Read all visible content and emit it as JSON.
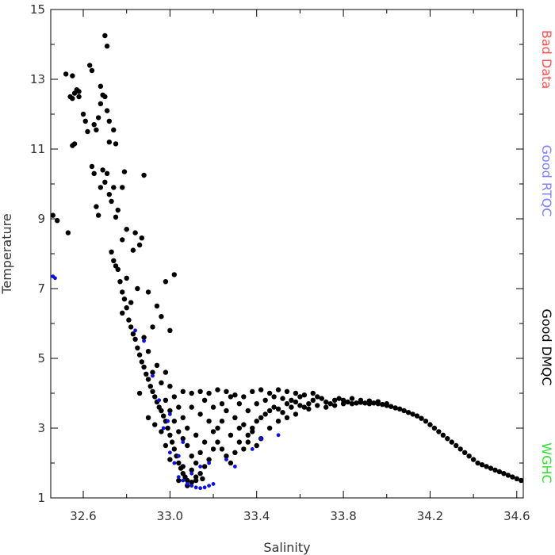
{
  "chart_data": {
    "type": "scatter",
    "xlabel": "Salinity",
    "ylabel": "Temperature",
    "xlim": [
      32.45,
      34.63
    ],
    "ylim": [
      1,
      15
    ],
    "x_ticks": [
      "32.6",
      "33.0",
      "33.4",
      "33.8",
      "34.2",
      "34.6"
    ],
    "y_ticks": [
      "1",
      "3",
      "5",
      "7",
      "9",
      "11",
      "13",
      "15"
    ],
    "grid": false,
    "legend_position": "right-vertical",
    "legend": [
      {
        "label": "Bad Data",
        "color": "#ff4d4d"
      },
      {
        "label": "Good RTQC",
        "color": "#8080ff"
      },
      {
        "label": "Good DMQC",
        "color": "#000000"
      },
      {
        "label": "WGHC",
        "color": "#33dd33"
      }
    ],
    "series": [
      {
        "name": "Good DMQC",
        "color": "#000000",
        "points": [
          [
            32.46,
            9.1
          ],
          [
            32.48,
            8.95
          ],
          [
            32.53,
            8.6
          ],
          [
            32.52,
            13.15
          ],
          [
            32.55,
            13.1
          ],
          [
            32.54,
            12.5
          ],
          [
            32.55,
            12.45
          ],
          [
            32.56,
            12.6
          ],
          [
            32.57,
            12.7
          ],
          [
            32.58,
            12.65
          ],
          [
            32.55,
            11.1
          ],
          [
            32.56,
            11.15
          ],
          [
            32.58,
            12.5
          ],
          [
            32.6,
            12.0
          ],
          [
            32.62,
            11.5
          ],
          [
            32.61,
            11.8
          ],
          [
            32.63,
            13.4
          ],
          [
            32.64,
            13.25
          ],
          [
            32.65,
            11.7
          ],
          [
            32.66,
            11.55
          ],
          [
            32.67,
            11.9
          ],
          [
            32.68,
            12.8
          ],
          [
            32.69,
            12.55
          ],
          [
            32.68,
            12.3
          ],
          [
            32.7,
            12.5
          ],
          [
            32.7,
            14.25
          ],
          [
            32.71,
            13.95
          ],
          [
            32.71,
            12.1
          ],
          [
            32.72,
            11.8
          ],
          [
            32.72,
            11.2
          ],
          [
            32.74,
            11.55
          ],
          [
            32.75,
            11.15
          ],
          [
            32.64,
            10.5
          ],
          [
            32.65,
            10.3
          ],
          [
            32.66,
            9.35
          ],
          [
            32.67,
            9.1
          ],
          [
            32.68,
            9.9
          ],
          [
            32.69,
            10.4
          ],
          [
            32.7,
            10.05
          ],
          [
            32.71,
            10.3
          ],
          [
            32.72,
            9.7
          ],
          [
            32.73,
            9.5
          ],
          [
            32.74,
            9.9
          ],
          [
            32.75,
            9.05
          ],
          [
            32.76,
            9.25
          ],
          [
            32.79,
            10.35
          ],
          [
            32.78,
            9.9
          ],
          [
            32.88,
            10.25
          ],
          [
            32.78,
            8.4
          ],
          [
            32.8,
            8.7
          ],
          [
            32.83,
            8.1
          ],
          [
            32.84,
            8.6
          ],
          [
            32.86,
            8.25
          ],
          [
            32.87,
            8.45
          ],
          [
            32.73,
            8.05
          ],
          [
            32.74,
            7.8
          ],
          [
            32.75,
            7.65
          ],
          [
            32.76,
            7.55
          ],
          [
            32.77,
            7.2
          ],
          [
            32.78,
            6.9
          ],
          [
            32.79,
            6.7
          ],
          [
            32.8,
            6.45
          ],
          [
            32.81,
            6.1
          ],
          [
            32.82,
            5.9
          ],
          [
            32.83,
            5.7
          ],
          [
            32.84,
            5.55
          ],
          [
            32.85,
            5.3
          ],
          [
            32.86,
            5.1
          ],
          [
            32.87,
            4.9
          ],
          [
            32.88,
            4.75
          ],
          [
            32.89,
            4.55
          ],
          [
            32.9,
            4.4
          ],
          [
            32.91,
            4.2
          ],
          [
            32.92,
            4.05
          ],
          [
            32.93,
            3.9
          ],
          [
            32.94,
            3.75
          ],
          [
            32.95,
            3.6
          ],
          [
            32.96,
            3.5
          ],
          [
            32.97,
            3.35
          ],
          [
            32.98,
            3.2
          ],
          [
            32.99,
            3.0
          ],
          [
            33.0,
            2.8
          ],
          [
            33.01,
            2.6
          ],
          [
            33.02,
            2.4
          ],
          [
            33.03,
            2.2
          ],
          [
            33.04,
            2.0
          ],
          [
            33.05,
            1.85
          ],
          [
            33.06,
            1.7
          ],
          [
            33.07,
            1.6
          ],
          [
            33.08,
            1.5
          ],
          [
            33.1,
            1.45
          ],
          [
            33.12,
            1.5
          ],
          [
            33.15,
            1.55
          ],
          [
            32.8,
            7.3
          ],
          [
            32.85,
            7.0
          ],
          [
            32.9,
            6.9
          ],
          [
            32.94,
            6.5
          ],
          [
            32.98,
            7.2
          ],
          [
            33.02,
            7.4
          ],
          [
            32.96,
            6.2
          ],
          [
            33.0,
            5.8
          ],
          [
            32.92,
            5.9
          ],
          [
            32.88,
            5.6
          ],
          [
            32.82,
            6.6
          ],
          [
            32.78,
            6.3
          ],
          [
            32.9,
            5.2
          ],
          [
            32.94,
            4.8
          ],
          [
            32.98,
            4.6
          ],
          [
            33.0,
            4.2
          ],
          [
            33.02,
            3.9
          ],
          [
            32.96,
            4.3
          ],
          [
            32.92,
            4.6
          ],
          [
            32.86,
            4.0
          ],
          [
            32.9,
            3.3
          ],
          [
            32.93,
            3.1
          ],
          [
            32.96,
            2.9
          ],
          [
            32.98,
            2.5
          ],
          [
            33.0,
            2.1
          ],
          [
            33.04,
            1.5
          ],
          [
            33.08,
            1.35
          ],
          [
            33.06,
            1.9
          ],
          [
            33.1,
            2.2
          ],
          [
            33.12,
            2.0
          ],
          [
            33.14,
            1.7
          ],
          [
            33.16,
            1.9
          ],
          [
            33.18,
            2.1
          ],
          [
            33.2,
            2.4
          ],
          [
            33.22,
            2.6
          ],
          [
            33.24,
            2.4
          ],
          [
            33.26,
            2.2
          ],
          [
            33.28,
            2.0
          ],
          [
            33.3,
            2.3
          ],
          [
            33.32,
            2.6
          ],
          [
            33.34,
            2.4
          ],
          [
            33.36,
            2.8
          ],
          [
            33.38,
            3.0
          ],
          [
            33.4,
            3.2
          ],
          [
            33.42,
            3.3
          ],
          [
            33.44,
            3.4
          ],
          [
            33.46,
            3.5
          ],
          [
            33.48,
            3.6
          ],
          [
            33.5,
            3.55
          ],
          [
            33.52,
            3.45
          ],
          [
            33.54,
            3.7
          ],
          [
            33.56,
            3.8
          ],
          [
            33.58,
            3.75
          ],
          [
            33.6,
            3.65
          ],
          [
            33.62,
            3.6
          ],
          [
            33.64,
            3.7
          ],
          [
            33.66,
            3.8
          ],
          [
            33.68,
            3.9
          ],
          [
            33.7,
            3.85
          ],
          [
            33.72,
            3.75
          ],
          [
            33.74,
            3.7
          ],
          [
            33.76,
            3.8
          ],
          [
            33.78,
            3.85
          ],
          [
            33.8,
            3.8
          ],
          [
            33.82,
            3.75
          ],
          [
            33.84,
            3.7
          ],
          [
            33.86,
            3.72
          ],
          [
            33.88,
            3.74
          ],
          [
            33.9,
            3.72
          ],
          [
            33.92,
            3.7
          ],
          [
            33.94,
            3.72
          ],
          [
            33.96,
            3.7
          ],
          [
            33.98,
            3.68
          ],
          [
            34.0,
            3.65
          ],
          [
            34.02,
            3.62
          ],
          [
            34.04,
            3.58
          ],
          [
            34.06,
            3.55
          ],
          [
            34.08,
            3.5
          ],
          [
            34.1,
            3.45
          ],
          [
            34.12,
            3.4
          ],
          [
            34.14,
            3.35
          ],
          [
            34.16,
            3.28
          ],
          [
            34.18,
            3.2
          ],
          [
            34.2,
            3.1
          ],
          [
            34.22,
            3.0
          ],
          [
            34.24,
            2.9
          ],
          [
            34.26,
            2.8
          ],
          [
            34.28,
            2.7
          ],
          [
            34.3,
            2.6
          ],
          [
            34.32,
            2.5
          ],
          [
            34.34,
            2.4
          ],
          [
            34.36,
            2.3
          ],
          [
            34.38,
            2.2
          ],
          [
            34.4,
            2.1
          ],
          [
            34.42,
            2.0
          ],
          [
            34.44,
            1.95
          ],
          [
            34.46,
            1.9
          ],
          [
            34.48,
            1.85
          ],
          [
            34.5,
            1.8
          ],
          [
            34.52,
            1.75
          ],
          [
            34.54,
            1.7
          ],
          [
            34.56,
            1.65
          ],
          [
            34.58,
            1.6
          ],
          [
            34.6,
            1.55
          ],
          [
            34.62,
            1.5
          ],
          [
            33.06,
            4.05
          ],
          [
            33.1,
            4.0
          ],
          [
            33.14,
            4.05
          ],
          [
            33.18,
            4.0
          ],
          [
            33.22,
            4.1
          ],
          [
            33.26,
            4.05
          ],
          [
            33.3,
            3.95
          ],
          [
            33.34,
            3.9
          ],
          [
            33.38,
            4.05
          ],
          [
            33.42,
            4.1
          ],
          [
            33.46,
            4.0
          ],
          [
            33.5,
            4.1
          ],
          [
            33.54,
            4.05
          ],
          [
            33.58,
            4.0
          ],
          [
            33.62,
            3.95
          ],
          [
            33.66,
            4.0
          ],
          [
            33.1,
            3.6
          ],
          [
            33.14,
            3.4
          ],
          [
            33.18,
            3.2
          ],
          [
            33.22,
            3.0
          ],
          [
            33.26,
            3.5
          ],
          [
            33.3,
            3.3
          ],
          [
            33.34,
            3.1
          ],
          [
            33.38,
            2.9
          ],
          [
            33.42,
            2.7
          ],
          [
            33.46,
            3.0
          ],
          [
            33.5,
            3.2
          ],
          [
            33.54,
            3.3
          ],
          [
            33.58,
            3.4
          ],
          [
            33.12,
            2.8
          ],
          [
            33.16,
            2.6
          ],
          [
            33.2,
            2.9
          ],
          [
            33.24,
            3.2
          ],
          [
            33.28,
            2.8
          ],
          [
            33.32,
            3.0
          ],
          [
            33.36,
            2.6
          ],
          [
            33.4,
            2.5
          ],
          [
            33.08,
            3.0
          ],
          [
            33.06,
            3.3
          ],
          [
            33.04,
            3.6
          ],
          [
            33.08,
            2.5
          ],
          [
            33.1,
            1.8
          ],
          [
            33.12,
            1.6
          ],
          [
            33.14,
            2.3
          ],
          [
            33.06,
            2.7
          ],
          [
            33.04,
            2.9
          ],
          [
            33.02,
            3.2
          ],
          [
            33.0,
            3.5
          ],
          [
            32.98,
            3.8
          ],
          [
            33.16,
            3.8
          ],
          [
            33.2,
            3.6
          ],
          [
            33.24,
            3.7
          ],
          [
            33.28,
            3.9
          ],
          [
            33.32,
            3.7
          ],
          [
            33.36,
            3.5
          ],
          [
            33.4,
            3.7
          ],
          [
            33.44,
            3.8
          ],
          [
            33.48,
            3.9
          ],
          [
            33.52,
            3.85
          ],
          [
            33.56,
            3.6
          ],
          [
            33.6,
            3.9
          ],
          [
            33.64,
            3.55
          ],
          [
            33.68,
            3.65
          ],
          [
            33.72,
            3.6
          ],
          [
            33.76,
            3.65
          ],
          [
            33.8,
            3.7
          ],
          [
            33.84,
            3.85
          ],
          [
            33.88,
            3.8
          ],
          [
            33.92,
            3.78
          ],
          [
            33.96,
            3.76
          ],
          [
            34.0,
            3.7
          ]
        ]
      },
      {
        "name": "Good RTQC",
        "color": "#1010e0",
        "points": [
          [
            32.46,
            7.35
          ],
          [
            32.47,
            7.3
          ],
          [
            32.84,
            5.8
          ],
          [
            32.88,
            5.5
          ],
          [
            32.92,
            4.5
          ],
          [
            32.95,
            3.8
          ],
          [
            32.97,
            3.0
          ],
          [
            32.99,
            3.2
          ],
          [
            33.0,
            2.3
          ],
          [
            33.02,
            2.0
          ],
          [
            33.04,
            1.6
          ],
          [
            33.06,
            1.5
          ],
          [
            33.08,
            1.4
          ],
          [
            33.1,
            1.35
          ],
          [
            33.12,
            1.3
          ],
          [
            33.14,
            1.28
          ],
          [
            33.16,
            1.3
          ],
          [
            33.18,
            1.35
          ],
          [
            33.2,
            1.4
          ],
          [
            33.04,
            2.2
          ],
          [
            33.1,
            1.7
          ],
          [
            33.14,
            1.9
          ],
          [
            33.18,
            2.0
          ],
          [
            33.26,
            2.1
          ],
          [
            33.3,
            1.9
          ],
          [
            33.38,
            2.4
          ],
          [
            33.42,
            2.7
          ],
          [
            33.5,
            2.8
          ],
          [
            33.06,
            2.6
          ],
          [
            33.0,
            3.4
          ]
        ]
      }
    ]
  }
}
